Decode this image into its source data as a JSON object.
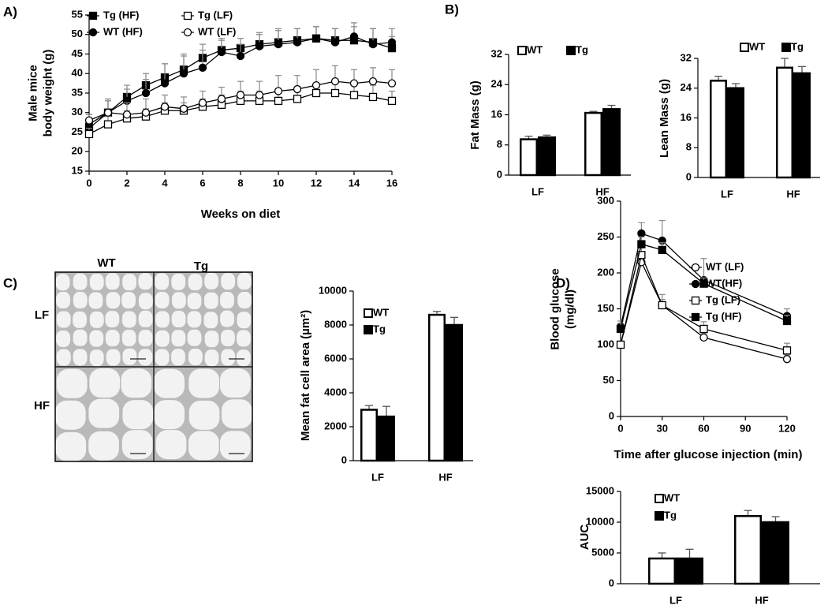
{
  "panel_labels": [
    "A)",
    "B)",
    "C)",
    "D)"
  ],
  "micrographs": {
    "columns": [
      "WT",
      "Tg"
    ],
    "rows": [
      "LF",
      "HF"
    ]
  },
  "chart_data": [
    {
      "type": "line",
      "xlabel": "Weeks on diet",
      "ylabel": [
        "Male mice",
        "body weight (g)"
      ],
      "x": [
        0,
        1,
        2,
        3,
        4,
        5,
        6,
        7,
        8,
        9,
        10,
        11,
        12,
        13,
        14,
        15,
        16
      ],
      "xlim": [
        0,
        16
      ],
      "xticks": [
        0,
        2,
        4,
        6,
        8,
        10,
        12,
        14,
        16
      ],
      "ylim": [
        15,
        55
      ],
      "yticks": [
        15,
        20,
        25,
        30,
        35,
        40,
        45,
        50,
        55
      ],
      "legend": "upper left",
      "legend_columns": 2,
      "series": [
        {
          "name": "Tg (HF)",
          "color": "#000000",
          "marker": "square",
          "values": [
            26,
            30,
            34,
            37,
            39,
            41,
            44,
            46,
            46.5,
            47.5,
            48,
            48.5,
            49,
            48.5,
            48.5,
            48,
            46.5
          ],
          "errors": [
            2,
            3,
            3,
            3,
            3.5,
            3.5,
            3.5,
            3,
            2.5,
            3,
            3,
            3,
            3,
            3,
            3.5,
            3.5,
            3
          ]
        },
        {
          "name": "WT (HF)",
          "color": "#000000",
          "marker": "circle",
          "values": [
            27,
            30,
            33,
            35,
            37.5,
            40,
            41.5,
            45.5,
            44.5,
            47,
            47.5,
            48,
            49,
            48,
            49.5,
            47.5,
            48
          ],
          "errors": [
            2.5,
            3.5,
            3,
            3.5,
            5,
            5,
            4.5,
            3,
            3,
            3,
            4,
            3.5,
            3,
            3.5,
            3.5,
            4,
            3.5
          ]
        },
        {
          "name": "Tg (LF)",
          "color": "#ffffff",
          "marker": "square",
          "values": [
            24.5,
            27,
            28.5,
            29,
            30.5,
            30.5,
            31.5,
            32,
            33,
            33,
            33,
            33.5,
            35,
            35,
            34.5,
            34,
            33
          ],
          "errors": [
            1.5,
            2,
            2,
            2,
            2,
            2,
            2,
            2.5,
            2.5,
            2.5,
            2.5,
            3,
            2.5,
            3,
            3,
            3,
            2.5
          ]
        },
        {
          "name": "WT (LF)",
          "color": "#ffffff",
          "marker": "circle",
          "values": [
            28,
            30,
            29.5,
            30,
            31.5,
            31,
            32.5,
            33.5,
            34.5,
            34.5,
            35.5,
            36,
            37,
            38,
            37.5,
            38,
            37.5
          ],
          "errors": [
            1.5,
            3,
            3,
            3.5,
            3,
            3,
            3,
            3,
            3.5,
            3.5,
            4,
            3.5,
            4,
            4,
            3.5,
            3.5,
            3.5
          ]
        }
      ]
    },
    {
      "type": "bar",
      "ylabel": [
        "Fat Mass (g)"
      ],
      "categories": [
        "LF",
        "HF"
      ],
      "ylim": [
        0,
        32
      ],
      "yticks": [
        0,
        8,
        16,
        24,
        32
      ],
      "legend": "upper left",
      "legend_columns": 2,
      "series": [
        {
          "name": "WT",
          "color": "#ffffff",
          "values": [
            9.5,
            16.5
          ],
          "errors": [
            0.8,
            0.4
          ]
        },
        {
          "name": "Tg",
          "color": "#000000",
          "values": [
            10,
            17.5
          ],
          "errors": [
            0.6,
            1.0
          ]
        }
      ]
    },
    {
      "type": "bar",
      "ylabel": [
        "Lean Mass (g)"
      ],
      "categories": [
        "LF",
        "HF"
      ],
      "ylim": [
        0,
        32
      ],
      "yticks": [
        0,
        8,
        16,
        24,
        32
      ],
      "legend": "upper right",
      "legend_columns": 2,
      "series": [
        {
          "name": "WT",
          "color": "#ffffff",
          "values": [
            26,
            29.5
          ],
          "errors": [
            1.2,
            2.5
          ]
        },
        {
          "name": "Tg",
          "color": "#000000",
          "values": [
            24,
            28
          ],
          "errors": [
            1.2,
            1.8
          ]
        }
      ]
    },
    {
      "type": "bar",
      "ylabel": [
        "Mean fat cell area (µm²)"
      ],
      "categories": [
        "LF",
        "HF"
      ],
      "ylim": [
        0,
        10000
      ],
      "yticks": [
        0,
        2000,
        4000,
        6000,
        8000,
        10000
      ],
      "legend": "upper left",
      "legend_columns": 1,
      "series": [
        {
          "name": "WT",
          "color": "#ffffff",
          "values": [
            3000,
            8600
          ],
          "errors": [
            250,
            200
          ]
        },
        {
          "name": "Tg",
          "color": "#000000",
          "values": [
            2600,
            8000
          ],
          "errors": [
            600,
            450
          ]
        }
      ]
    },
    {
      "type": "line",
      "xlabel": "Time after glucose injection (min)",
      "ylabel": [
        "Blood glucose",
        "(mg/dl)"
      ],
      "x": [
        0,
        15,
        30,
        60,
        120
      ],
      "xlim": [
        0,
        120
      ],
      "xticks": [
        0,
        30,
        60,
        90,
        120
      ],
      "ylim": [
        0,
        300
      ],
      "yticks": [
        0,
        50,
        100,
        150,
        200,
        250,
        300
      ],
      "legend": "upper right",
      "legend_columns": 1,
      "series": [
        {
          "name": "WT (LF)",
          "color": "#ffffff",
          "marker": "circle",
          "values": [
            100,
            215,
            155,
            110,
            80
          ],
          "errors": [
            5,
            8,
            8,
            6,
            6
          ]
        },
        {
          "name": "WT(HF)",
          "color": "#000000",
          "marker": "circle",
          "values": [
            125,
            255,
            245,
            190,
            140
          ],
          "errors": [
            8,
            15,
            28,
            30,
            10
          ]
        },
        {
          "name": "Tg (LF)",
          "color": "#ffffff",
          "marker": "square",
          "values": [
            100,
            225,
            155,
            122,
            92
          ],
          "errors": [
            5,
            10,
            15,
            10,
            10
          ]
        },
        {
          "name": "Tg (HF)",
          "color": "#000000",
          "marker": "square",
          "values": [
            122,
            240,
            232,
            185,
            133
          ],
          "errors": [
            8,
            10,
            10,
            8,
            8
          ]
        }
      ]
    },
    {
      "type": "bar",
      "ylabel": [
        "AUC"
      ],
      "categories": [
        "LF",
        "HF"
      ],
      "ylim": [
        0,
        15000
      ],
      "yticks": [
        0,
        5000,
        10000,
        15000
      ],
      "legend": "upper left",
      "legend_columns": 1,
      "series": [
        {
          "name": "WT",
          "color": "#ffffff",
          "values": [
            4100,
            11000
          ],
          "errors": [
            900,
            900
          ]
        },
        {
          "name": "Tg",
          "color": "#000000",
          "values": [
            4100,
            10000
          ],
          "errors": [
            1500,
            900
          ]
        }
      ]
    }
  ]
}
